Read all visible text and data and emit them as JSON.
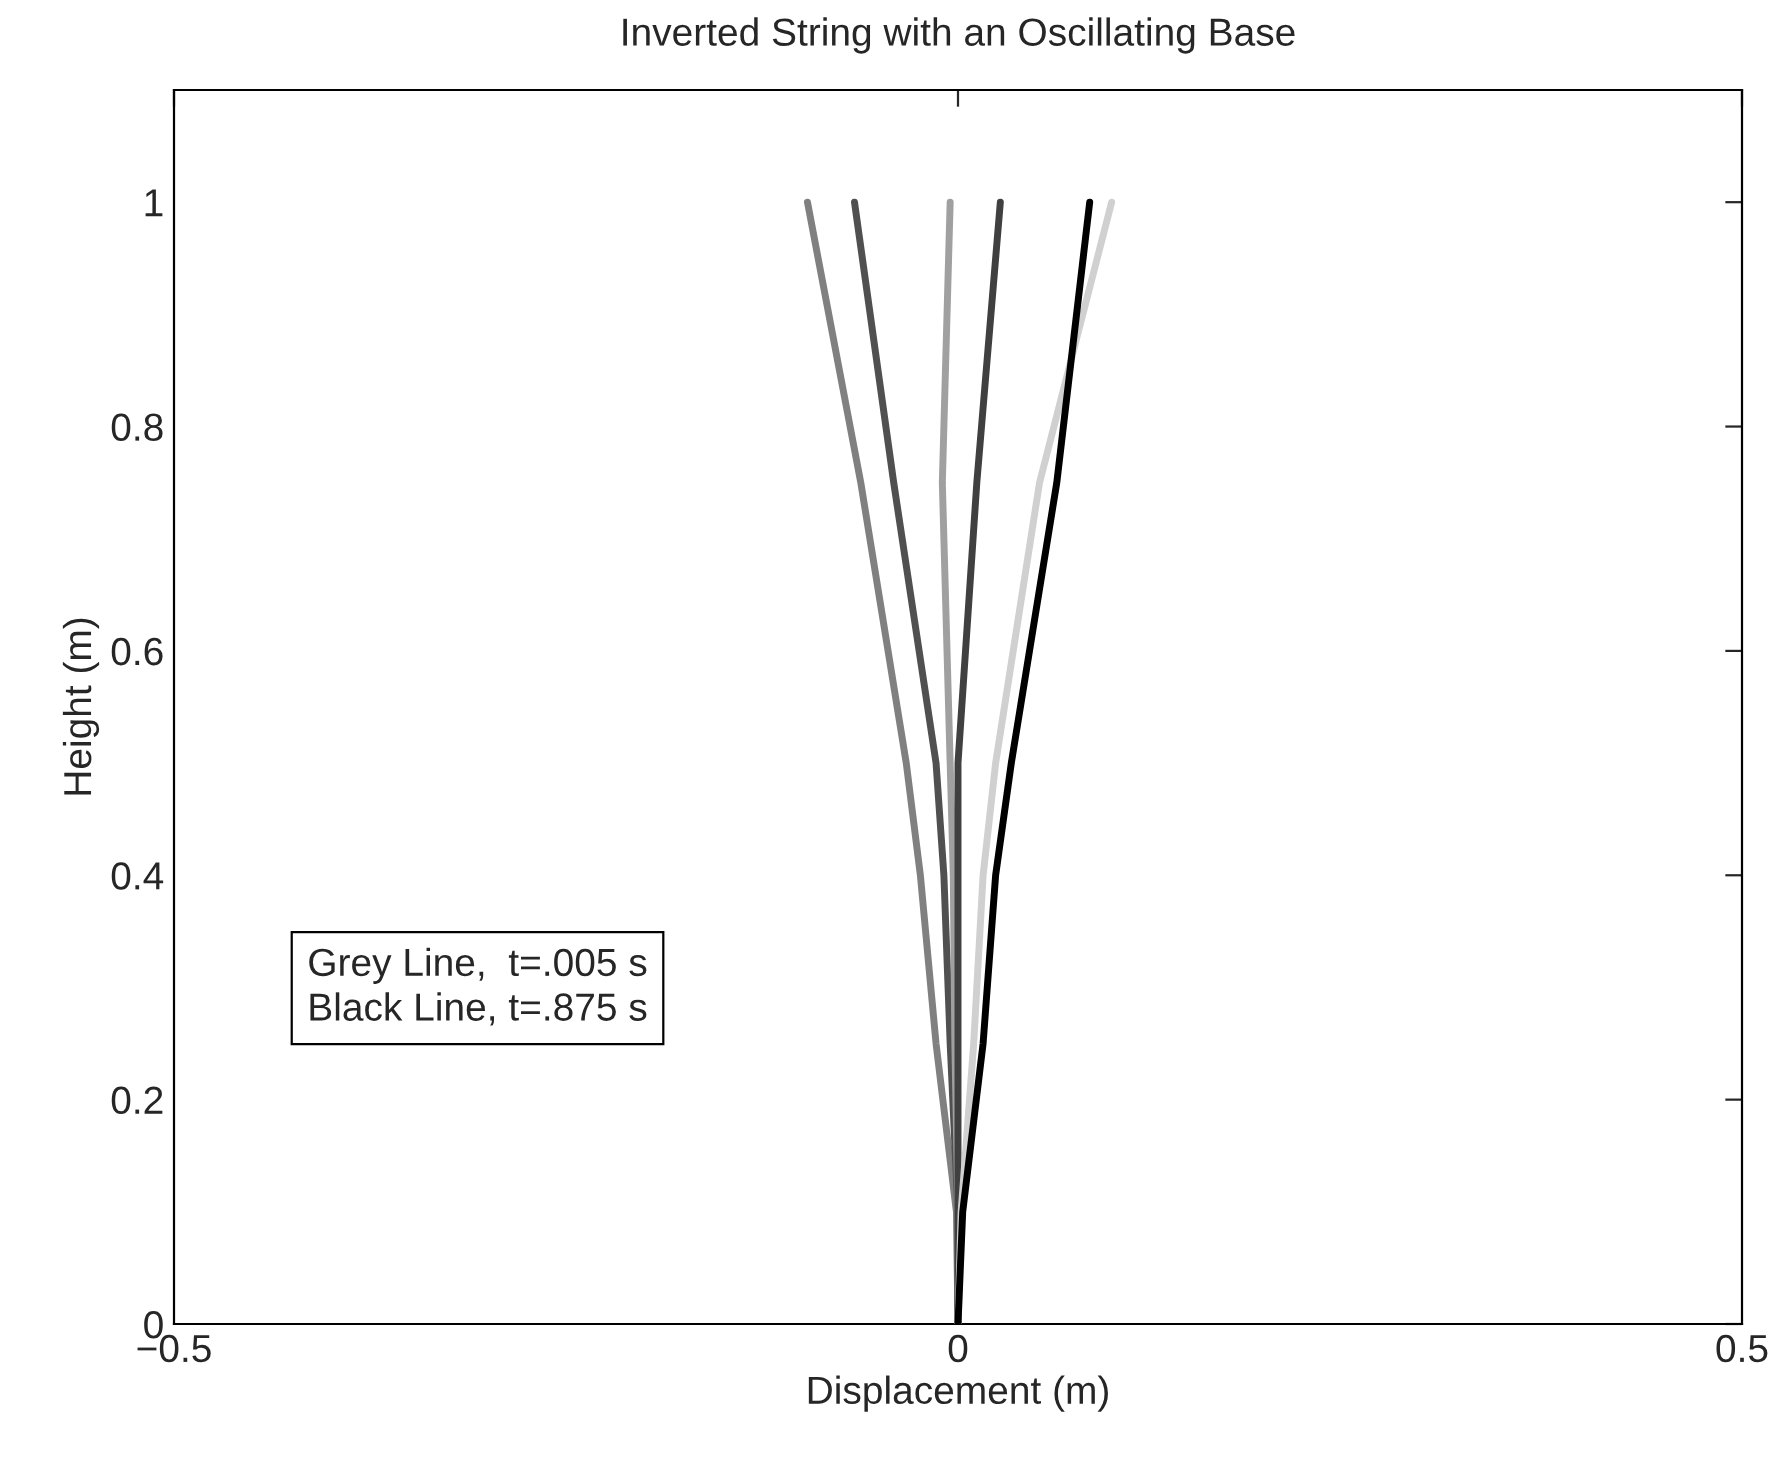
{
  "chart_data": {
    "type": "line",
    "title": "Inverted String with an Oscillating Base",
    "xlabel": "Displacement (m)",
    "ylabel": "Height (m)",
    "series": [
      {
        "color": "#808080",
        "x": [
          0,
          -0.001,
          -0.014,
          -0.024,
          -0.033,
          -0.062,
          -0.096
        ],
        "values": [
          0,
          0.1,
          0.25,
          0.4,
          0.5,
          0.75,
          1
        ]
      },
      {
        "color": "#505050",
        "x": [
          0,
          0,
          -0.005,
          -0.009,
          -0.014,
          -0.041,
          -0.066
        ],
        "values": [
          0,
          0.1,
          0.25,
          0.4,
          0.5,
          0.75,
          1
        ]
      },
      {
        "color": "#a0a0a0",
        "x": [
          0,
          0,
          -0.002,
          -0.003,
          -0.005,
          -0.01,
          -0.005
        ],
        "values": [
          0,
          0.1,
          0.25,
          0.4,
          0.5,
          0.75,
          1
        ]
      },
      {
        "color": "#404040",
        "x": [
          0,
          0,
          0,
          0,
          0,
          0.012,
          0.027
        ],
        "values": [
          0,
          0.1,
          0.25,
          0.4,
          0.5,
          0.75,
          1
        ]
      },
      {
        "color": "#d0d0d0",
        "x": [
          0,
          0.002,
          0.01,
          0.016,
          0.024,
          0.052,
          0.098
        ],
        "values": [
          0,
          0.1,
          0.25,
          0.4,
          0.5,
          0.75,
          1
        ]
      },
      {
        "color": "#000000",
        "x": [
          0,
          0.003,
          0.016,
          0.024,
          0.034,
          0.063,
          0.084
        ],
        "values": [
          0,
          0.1,
          0.25,
          0.4,
          0.5,
          0.75,
          1
        ]
      }
    ],
    "xlim": [
      -0.5,
      0.5
    ],
    "xticks": [
      {
        "value": -0.5,
        "label": "−0.5"
      },
      0,
      0.5
    ],
    "ylim": [
      0,
      1.1
    ],
    "yticks": [
      0,
      0.2,
      0.4,
      0.6,
      0.8,
      1
    ],
    "annotations": [
      "Grey Line,  t=.005 s",
      "Black Line, t=.875 s"
    ],
    "grid": false,
    "legend": false,
    "marker": "none",
    "line_style": "solid"
  }
}
